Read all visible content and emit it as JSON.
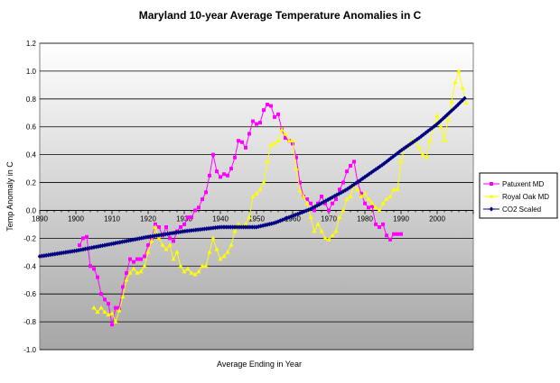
{
  "chart_data": {
    "type": "line",
    "title": "Maryland 10-year Average Temperature Anomalies in C",
    "xlabel": "Average Ending in Year",
    "ylabel": "Temp Anomaly in C",
    "xlim": [
      1890,
      2010
    ],
    "ylim": [
      -1.0,
      1.2
    ],
    "grid": true,
    "legend_position": "right",
    "x_tick_labels": [
      "1890",
      "1900",
      "1910",
      "1920",
      "1930",
      "1940",
      "1950",
      "1960",
      "1970",
      "1980",
      "1990",
      "2000"
    ],
    "y_tick_labels": [
      "1.2",
      "1.0",
      "0.8",
      "0.6",
      "0.4",
      "0.2",
      "0.0",
      "-0.2",
      "-0.4",
      "-0.6",
      "-0.8",
      "-1.0"
    ],
    "series": [
      {
        "name": "Patuxent MD",
        "color": "#ff00ff",
        "marker": "square",
        "x": [
          1901,
          1902,
          1903,
          1904,
          1905,
          1906,
          1907,
          1908,
          1909,
          1910,
          1911,
          1912,
          1913,
          1914,
          1915,
          1916,
          1917,
          1918,
          1919,
          1920,
          1921,
          1922,
          1923,
          1924,
          1925,
          1926,
          1927,
          1928,
          1929,
          1930,
          1931,
          1932,
          1933,
          1934,
          1935,
          1936,
          1937,
          1938,
          1939,
          1940,
          1941,
          1942,
          1943,
          1944,
          1945,
          1946,
          1947,
          1948,
          1949,
          1950,
          1951,
          1952,
          1953,
          1954,
          1955,
          1956,
          1957,
          1958,
          1959,
          1960,
          1961,
          1962,
          1963,
          1964,
          1965,
          1966,
          1967,
          1968,
          1969,
          1970,
          1971,
          1972,
          1973,
          1974,
          1975,
          1976,
          1977,
          1978,
          1979,
          1980,
          1981,
          1982,
          1983,
          1984,
          1985,
          1986,
          1987,
          1988,
          1989,
          1990
        ],
        "y": [
          -0.25,
          -0.2,
          -0.19,
          -0.4,
          -0.42,
          -0.48,
          -0.6,
          -0.64,
          -0.67,
          -0.82,
          -0.7,
          -0.7,
          -0.55,
          -0.45,
          -0.35,
          -0.37,
          -0.35,
          -0.35,
          -0.33,
          -0.25,
          -0.2,
          -0.1,
          -0.12,
          -0.18,
          -0.12,
          -0.2,
          -0.22,
          -0.15,
          -0.12,
          -0.1,
          -0.05,
          -0.05,
          0.0,
          0.02,
          0.08,
          0.13,
          0.25,
          0.4,
          0.28,
          0.24,
          0.26,
          0.25,
          0.3,
          0.38,
          0.5,
          0.49,
          0.45,
          0.55,
          0.64,
          0.62,
          0.63,
          0.72,
          0.76,
          0.75,
          0.67,
          0.69,
          0.58,
          0.52,
          0.5,
          0.48,
          0.38,
          0.2,
          0.1,
          0.08,
          0.05,
          0.0,
          0.05,
          0.1,
          0.05,
          0.0,
          0.05,
          0.08,
          0.15,
          0.2,
          0.28,
          0.32,
          0.35,
          0.2,
          0.12,
          0.05,
          0.02,
          0.03,
          -0.1,
          -0.12,
          -0.1,
          -0.18,
          -0.21,
          -0.17,
          -0.17,
          -0.17
        ]
      },
      {
        "name": "Royal Oak MD",
        "color": "#ffff00",
        "marker": "triangle",
        "x": [
          1905,
          1906,
          1907,
          1908,
          1909,
          1910,
          1911,
          1912,
          1913,
          1914,
          1915,
          1916,
          1917,
          1918,
          1919,
          1920,
          1921,
          1922,
          1923,
          1924,
          1925,
          1926,
          1927,
          1928,
          1929,
          1930,
          1931,
          1932,
          1933,
          1934,
          1935,
          1936,
          1937,
          1938,
          1939,
          1940,
          1941,
          1942,
          1943,
          1944,
          1945,
          1946,
          1947,
          1948,
          1949,
          1950,
          1951,
          1952,
          1953,
          1954,
          1955,
          1956,
          1957,
          1958,
          1959,
          1960,
          1961,
          1962,
          1963,
          1964,
          1965,
          1966,
          1967,
          1968,
          1969,
          1970,
          1971,
          1972,
          1973,
          1974,
          1975,
          1976,
          1977,
          1978,
          1979,
          1980,
          1981,
          1982,
          1983,
          1984,
          1985,
          1986,
          1987,
          1988,
          1989,
          1990,
          1991,
          1992,
          1993,
          1994,
          1995,
          1996,
          1997,
          1998,
          1999,
          2000,
          2001,
          2002,
          2003,
          2004,
          2005,
          2006,
          2007,
          2008
        ],
        "y": [
          -0.7,
          -0.73,
          -0.7,
          -0.73,
          -0.75,
          -0.74,
          -0.8,
          -0.72,
          -0.62,
          -0.5,
          -0.45,
          -0.42,
          -0.45,
          -0.44,
          -0.4,
          -0.3,
          -0.22,
          -0.12,
          -0.2,
          -0.25,
          -0.28,
          -0.25,
          -0.35,
          -0.3,
          -0.4,
          -0.44,
          -0.42,
          -0.45,
          -0.46,
          -0.44,
          -0.4,
          -0.4,
          -0.3,
          -0.2,
          -0.28,
          -0.35,
          -0.33,
          -0.3,
          -0.25,
          -0.15,
          -0.1,
          -0.12,
          -0.1,
          -0.05,
          0.1,
          0.12,
          0.15,
          0.2,
          0.35,
          0.47,
          0.48,
          0.5,
          0.58,
          0.55,
          0.5,
          0.5,
          0.3,
          0.14,
          0.1,
          0.05,
          -0.05,
          -0.15,
          -0.1,
          -0.15,
          -0.2,
          -0.21,
          -0.18,
          -0.15,
          -0.05,
          0.0,
          0.08,
          0.1,
          0.18,
          0.15,
          0.1,
          0.12,
          0.08,
          0.05,
          0.02,
          0.0,
          0.05,
          0.08,
          0.1,
          0.15,
          0.15,
          0.35,
          0.45,
          0.46,
          0.5,
          0.5,
          0.45,
          0.4,
          0.38,
          0.5,
          0.6,
          0.68,
          0.6,
          0.5,
          0.65,
          0.78,
          0.92,
          1.0,
          0.88,
          0.77
        ]
      },
      {
        "name": "CO2 Scaled",
        "color": "#000080",
        "marker": "diamond",
        "x_start": 1890,
        "x_end": 2008,
        "x_step": 0.6,
        "curve_points": [
          {
            "x": 1890,
            "y": -0.33
          },
          {
            "x": 1900,
            "y": -0.29
          },
          {
            "x": 1910,
            "y": -0.24
          },
          {
            "x": 1920,
            "y": -0.19
          },
          {
            "x": 1930,
            "y": -0.15
          },
          {
            "x": 1940,
            "y": -0.12
          },
          {
            "x": 1950,
            "y": -0.12
          },
          {
            "x": 1955,
            "y": -0.09
          },
          {
            "x": 1960,
            "y": -0.04
          },
          {
            "x": 1965,
            "y": 0.01
          },
          {
            "x": 1970,
            "y": 0.08
          },
          {
            "x": 1975,
            "y": 0.15
          },
          {
            "x": 1980,
            "y": 0.24
          },
          {
            "x": 1985,
            "y": 0.33
          },
          {
            "x": 1990,
            "y": 0.43
          },
          {
            "x": 1995,
            "y": 0.52
          },
          {
            "x": 2000,
            "y": 0.62
          },
          {
            "x": 2005,
            "y": 0.74
          },
          {
            "x": 2009,
            "y": 0.84
          }
        ]
      }
    ]
  }
}
